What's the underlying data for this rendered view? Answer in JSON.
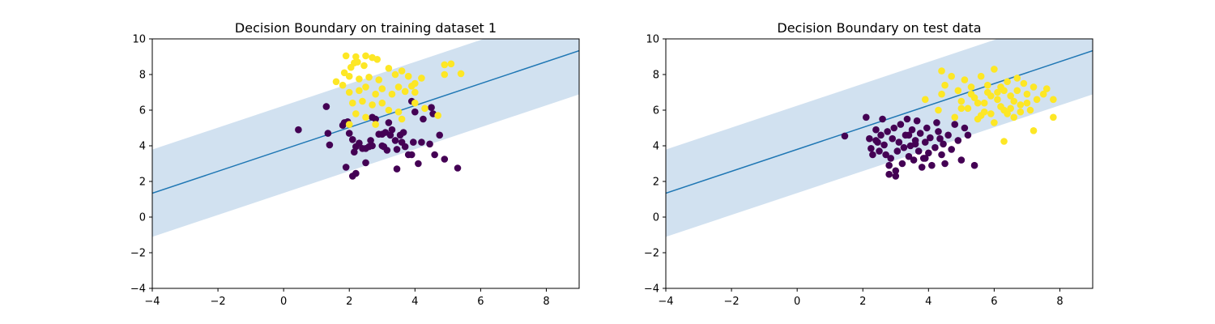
{
  "chart_data": [
    {
      "type": "scatter",
      "title": "Decision Boundary on training dataset 1",
      "xlabel": "",
      "ylabel": "",
      "xlim": [
        -4,
        9
      ],
      "ylim": [
        -4,
        10
      ],
      "xticks": [
        "−4",
        "−2",
        "0",
        "2",
        "4",
        "6",
        "8"
      ],
      "yticks": [
        "−4",
        "−2",
        "0",
        "2",
        "4",
        "6",
        "8",
        "10"
      ],
      "grid": false,
      "decision_boundary": {
        "slope": 0.615,
        "intercept": 3.8,
        "margin": 2.45,
        "line_color": "#1f77b4",
        "band_color": "#c9dced"
      },
      "series": [
        {
          "color": "#440154",
          "points": [
            [
              0.45,
              4.9
            ],
            [
              1.3,
              6.2
            ],
            [
              1.35,
              4.7
            ],
            [
              1.4,
              4.05
            ],
            [
              1.8,
              5.15
            ],
            [
              1.85,
              5.3
            ],
            [
              1.95,
              5.35
            ],
            [
              2.0,
              4.7
            ],
            [
              2.1,
              4.35
            ],
            [
              2.15,
              3.65
            ],
            [
              2.2,
              3.95
            ],
            [
              2.3,
              4.15
            ],
            [
              2.4,
              3.85
            ],
            [
              2.5,
              3.85
            ],
            [
              2.6,
              3.95
            ],
            [
              2.65,
              4.3
            ],
            [
              2.7,
              5.6
            ],
            [
              2.8,
              5.5
            ],
            [
              2.9,
              4.65
            ],
            [
              3.0,
              4.65
            ],
            [
              3.05,
              3.95
            ],
            [
              3.1,
              4.75
            ],
            [
              3.15,
              3.75
            ],
            [
              3.2,
              5.3
            ],
            [
              3.25,
              4.6
            ],
            [
              3.3,
              4.9
            ],
            [
              3.4,
              4.3
            ],
            [
              3.45,
              3.8
            ],
            [
              3.55,
              4.6
            ],
            [
              3.65,
              4.75
            ],
            [
              3.7,
              3.95
            ],
            [
              3.8,
              3.5
            ],
            [
              3.9,
              3.5
            ],
            [
              3.95,
              4.2
            ],
            [
              3.9,
              6.5
            ],
            [
              4.0,
              5.9
            ],
            [
              4.2,
              4.2
            ],
            [
              4.25,
              5.5
            ],
            [
              4.45,
              4.1
            ],
            [
              4.5,
              6.15
            ],
            [
              4.55,
              5.8
            ],
            [
              4.6,
              3.5
            ],
            [
              4.75,
              4.6
            ],
            [
              4.9,
              3.25
            ],
            [
              5.3,
              2.75
            ],
            [
              4.1,
              3.0
            ],
            [
              3.45,
              2.7
            ],
            [
              2.5,
              3.05
            ],
            [
              1.9,
              2.8
            ],
            [
              2.1,
              2.3
            ],
            [
              2.2,
              2.45
            ],
            [
              3.0,
              4.0
            ],
            [
              2.7,
              4.0
            ],
            [
              3.6,
              4.2
            ]
          ]
        },
        {
          "color": "#fde725",
          "points": [
            [
              1.9,
              9.05
            ],
            [
              2.15,
              8.65
            ],
            [
              2.2,
              9.0
            ],
            [
              2.25,
              8.7
            ],
            [
              2.5,
              9.05
            ],
            [
              2.45,
              8.5
            ],
            [
              2.7,
              8.95
            ],
            [
              2.85,
              8.85
            ],
            [
              2.05,
              8.4
            ],
            [
              1.85,
              8.1
            ],
            [
              2.0,
              7.9
            ],
            [
              2.3,
              7.75
            ],
            [
              2.6,
              7.85
            ],
            [
              2.9,
              7.7
            ],
            [
              3.2,
              8.35
            ],
            [
              3.4,
              8.0
            ],
            [
              3.6,
              8.2
            ],
            [
              3.8,
              7.9
            ],
            [
              4.0,
              7.5
            ],
            [
              4.2,
              7.8
            ],
            [
              1.6,
              7.6
            ],
            [
              1.8,
              7.4
            ],
            [
              2.0,
              7.0
            ],
            [
              2.3,
              7.1
            ],
            [
              2.5,
              7.3
            ],
            [
              2.8,
              6.9
            ],
            [
              3.0,
              7.2
            ],
            [
              3.3,
              6.9
            ],
            [
              3.5,
              7.3
            ],
            [
              3.7,
              7.05
            ],
            [
              3.9,
              7.35
            ],
            [
              2.1,
              6.4
            ],
            [
              2.4,
              6.5
            ],
            [
              2.7,
              6.3
            ],
            [
              3.0,
              6.4
            ],
            [
              3.2,
              6.0
            ],
            [
              3.5,
              5.9
            ],
            [
              4.0,
              6.4
            ],
            [
              4.3,
              6.1
            ],
            [
              2.2,
              5.8
            ],
            [
              2.5,
              5.6
            ],
            [
              2.8,
              5.2
            ],
            [
              3.6,
              5.5
            ],
            [
              4.7,
              5.7
            ],
            [
              4.9,
              8.0
            ],
            [
              4.9,
              8.55
            ],
            [
              5.1,
              8.6
            ],
            [
              5.4,
              8.05
            ],
            [
              4.0,
              7.0
            ],
            [
              2.0,
              5.2
            ]
          ]
        }
      ]
    },
    {
      "type": "scatter",
      "title": "Decision Boundary on test data",
      "xlabel": "",
      "ylabel": "",
      "xlim": [
        -4,
        9
      ],
      "ylim": [
        -4,
        10
      ],
      "xticks": [
        "−4",
        "−2",
        "0",
        "2",
        "4",
        "6",
        "8"
      ],
      "yticks": [
        "−4",
        "−2",
        "0",
        "2",
        "4",
        "6",
        "8",
        "10"
      ],
      "grid": false,
      "decision_boundary": {
        "slope": 0.615,
        "intercept": 3.8,
        "margin": 2.45,
        "line_color": "#1f77b4",
        "band_color": "#c9dced"
      },
      "series": [
        {
          "color": "#440154",
          "points": [
            [
              1.45,
              4.55
            ],
            [
              2.1,
              5.6
            ],
            [
              2.2,
              4.4
            ],
            [
              2.25,
              3.85
            ],
            [
              2.4,
              4.9
            ],
            [
              2.45,
              4.2
            ],
            [
              2.5,
              3.7
            ],
            [
              2.55,
              4.6
            ],
            [
              2.6,
              5.5
            ],
            [
              2.65,
              4.05
            ],
            [
              2.7,
              3.5
            ],
            [
              2.75,
              4.8
            ],
            [
              2.8,
              2.9
            ],
            [
              2.85,
              3.3
            ],
            [
              2.9,
              4.4
            ],
            [
              2.95,
              5.0
            ],
            [
              3.0,
              2.6
            ],
            [
              3.05,
              3.7
            ],
            [
              3.1,
              4.2
            ],
            [
              3.15,
              5.2
            ],
            [
              3.2,
              3.0
            ],
            [
              3.25,
              3.9
            ],
            [
              3.3,
              4.6
            ],
            [
              3.35,
              5.5
            ],
            [
              3.4,
              3.4
            ],
            [
              3.45,
              4.0
            ],
            [
              3.5,
              4.9
            ],
            [
              3.55,
              3.2
            ],
            [
              3.6,
              4.3
            ],
            [
              3.65,
              5.4
            ],
            [
              3.7,
              3.7
            ],
            [
              3.75,
              4.7
            ],
            [
              3.8,
              2.8
            ],
            [
              3.85,
              3.3
            ],
            [
              3.9,
              4.2
            ],
            [
              3.95,
              5.0
            ],
            [
              4.0,
              3.6
            ],
            [
              4.05,
              4.45
            ],
            [
              4.1,
              2.9
            ],
            [
              4.2,
              3.9
            ],
            [
              4.25,
              5.3
            ],
            [
              4.3,
              4.8
            ],
            [
              4.4,
              3.5
            ],
            [
              4.45,
              4.1
            ],
            [
              4.5,
              3.0
            ],
            [
              4.6,
              4.6
            ],
            [
              4.7,
              3.8
            ],
            [
              4.8,
              5.2
            ],
            [
              4.9,
              4.3
            ],
            [
              5.0,
              3.2
            ],
            [
              5.1,
              5.0
            ],
            [
              5.2,
              4.6
            ],
            [
              5.4,
              2.9
            ],
            [
              3.0,
              2.3
            ],
            [
              2.8,
              2.4
            ],
            [
              3.4,
              4.6
            ],
            [
              2.4,
              4.3
            ],
            [
              3.6,
              4.1
            ],
            [
              4.35,
              4.4
            ],
            [
              2.3,
              3.5
            ],
            [
              3.9,
              3.3
            ]
          ]
        },
        {
          "color": "#fde725",
          "points": [
            [
              4.4,
              6.9
            ],
            [
              4.5,
              7.4
            ],
            [
              4.4,
              8.2
            ],
            [
              4.7,
              7.9
            ],
            [
              4.9,
              7.1
            ],
            [
              5.0,
              6.5
            ],
            [
              5.1,
              7.7
            ],
            [
              5.2,
              6.1
            ],
            [
              5.3,
              7.3
            ],
            [
              5.4,
              6.7
            ],
            [
              5.5,
              5.5
            ],
            [
              5.6,
              7.9
            ],
            [
              5.7,
              6.4
            ],
            [
              5.8,
              7.0
            ],
            [
              5.9,
              5.8
            ],
            [
              6.0,
              8.3
            ],
            [
              6.1,
              6.6
            ],
            [
              6.2,
              7.3
            ],
            [
              6.3,
              6.0
            ],
            [
              6.4,
              7.6
            ],
            [
              6.5,
              6.8
            ],
            [
              6.6,
              5.6
            ],
            [
              6.7,
              7.1
            ],
            [
              6.8,
              6.3
            ],
            [
              6.9,
              7.5
            ],
            [
              7.0,
              6.9
            ],
            [
              7.1,
              6.0
            ],
            [
              7.2,
              7.3
            ],
            [
              7.3,
              6.6
            ],
            [
              7.5,
              6.9
            ],
            [
              7.6,
              7.2
            ],
            [
              7.8,
              6.6
            ],
            [
              7.8,
              5.6
            ],
            [
              7.2,
              4.85
            ],
            [
              6.3,
              4.25
            ],
            [
              3.9,
              6.6
            ],
            [
              4.3,
              6.0
            ],
            [
              4.8,
              5.6
            ],
            [
              5.0,
              6.1
            ],
            [
              5.6,
              5.7
            ],
            [
              6.0,
              5.3
            ],
            [
              6.4,
              5.8
            ],
            [
              6.8,
              5.9
            ],
            [
              5.3,
              6.9
            ],
            [
              5.8,
              7.4
            ],
            [
              6.2,
              6.2
            ],
            [
              6.6,
              6.5
            ],
            [
              6.1,
              7.0
            ],
            [
              5.9,
              6.8
            ],
            [
              6.7,
              7.8
            ],
            [
              5.7,
              5.9
            ],
            [
              6.5,
              6.1
            ],
            [
              7.0,
              6.4
            ],
            [
              5.5,
              6.4
            ],
            [
              6.3,
              7.1
            ]
          ]
        }
      ]
    }
  ]
}
